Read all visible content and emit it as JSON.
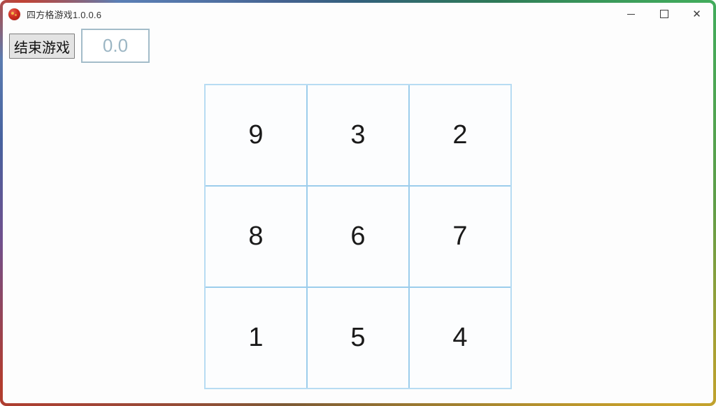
{
  "window": {
    "title": "四方格游戏1.0.0.6",
    "app_icon": "red-seal-icon",
    "controls": [
      {
        "name": "minimize"
      },
      {
        "name": "maximize"
      },
      {
        "name": "close",
        "glyph": "✕"
      }
    ]
  },
  "toolbar": {
    "end_game_label": "结束游戏",
    "score_value": "0.0"
  },
  "board": {
    "rows": 3,
    "cols": 3,
    "cells": [
      "9",
      "3",
      "2",
      "8",
      "6",
      "7",
      "1",
      "5",
      "4"
    ]
  },
  "colors": {
    "board_grid_line": "#9ccdec",
    "board_outer_border": "#b7dcf3",
    "cell_background": "#fcfdfe",
    "cell_number": "#1a1a1a",
    "score_text": "#9cb6c4",
    "score_border": "#a3bcc9",
    "button_background": "#e3e3e3",
    "button_border": "#7d7d7d",
    "frame_top_left": "#c04234",
    "frame_top_right": "#41ab5c",
    "frame_bottom_right": "#c9a22b",
    "frame_bottom_left": "#b23c2e"
  }
}
